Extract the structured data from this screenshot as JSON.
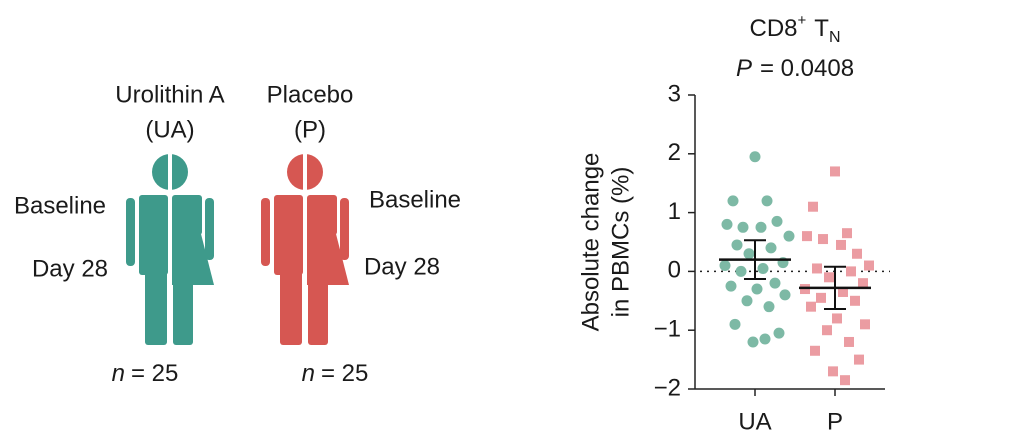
{
  "diagram": {
    "groups": [
      {
        "name": "Urolithin A",
        "abbr": "(UA)",
        "top_label": "Baseline",
        "bottom_label": "Day 28",
        "n_label": [
          "n",
          "= 25"
        ]
      },
      {
        "name": "Placebo",
        "abbr": "(P)",
        "top_label": "Baseline",
        "bottom_label": "Day 28",
        "n_label": [
          "n",
          "= 25"
        ]
      }
    ]
  },
  "chart_data": {
    "type": "strip",
    "title": [
      "CD8",
      "+",
      "T",
      "N"
    ],
    "subtitle": [
      "P",
      "= 0.0408"
    ],
    "y_label": [
      "Absolute change",
      "in PBMCs (%)"
    ],
    "categories": [
      "UA",
      "P"
    ],
    "ylim": [
      -2,
      3
    ],
    "yticks": [
      3,
      2,
      1,
      0,
      {
        "value": -1,
        "label": "−1"
      },
      {
        "value": -2,
        "label": "−2"
      }
    ],
    "reference_line": 0,
    "series": [
      {
        "name": "UA",
        "color": "#7db9a5",
        "marker": "circle",
        "mean": 0.2,
        "error": 0.33,
        "values": [
          1.95,
          1.2,
          1.2,
          0.8,
          0.75,
          0.75,
          0.85,
          0.6,
          0.45,
          0.4,
          0.3,
          0.15,
          0.1,
          0.05,
          0.0,
          -0.2,
          -0.25,
          -0.3,
          -0.4,
          -0.5,
          -0.6,
          -0.9,
          -1.05,
          -1.2,
          -1.15
        ]
      },
      {
        "name": "P",
        "color": "#eb9ca2",
        "marker": "square",
        "mean": -0.28,
        "error": 0.36,
        "values": [
          1.7,
          1.1,
          0.65,
          0.6,
          0.55,
          0.45,
          0.3,
          0.1,
          0.05,
          0.0,
          -0.1,
          -0.2,
          -0.3,
          -0.35,
          -0.45,
          -0.5,
          -0.6,
          -0.8,
          -0.9,
          -1.0,
          -1.2,
          -1.35,
          -1.5,
          -1.7,
          -1.85
        ]
      }
    ]
  }
}
